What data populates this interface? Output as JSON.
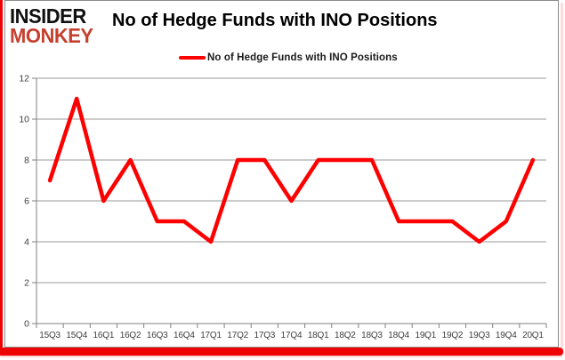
{
  "header": {
    "logo_line1": "INSIDER",
    "logo_line2": "MONKEY",
    "title": "No of Hedge Funds with INO Positions"
  },
  "legend": {
    "label": "No of Hedge Funds with INO Positions"
  },
  "colors": {
    "series_red": "#fe0000",
    "logo_black": "#111111",
    "logo_red": "#c5402f",
    "accent_red": "#ee0404",
    "gridline_gray": "#9a9a9a",
    "axis_gray": "#808080",
    "axis_label_color": "#3d3d3d",
    "background": "#ffffff"
  },
  "chart_data": {
    "type": "line",
    "title": "No of Hedge Funds with INO Positions",
    "categories": [
      "15Q3",
      "15Q4",
      "16Q1",
      "16Q2",
      "16Q3",
      "16Q4",
      "17Q1",
      "17Q2",
      "17Q3",
      "17Q4",
      "18Q1",
      "18Q2",
      "18Q3",
      "18Q4",
      "19Q1",
      "19Q2",
      "19Q3",
      "19Q4",
      "20Q1"
    ],
    "series": [
      {
        "name": "No of Hedge Funds with INO Positions",
        "values": [
          7,
          11,
          6,
          8,
          5,
          5,
          4,
          8,
          8,
          6,
          8,
          8,
          8,
          5,
          5,
          5,
          4,
          5,
          8
        ]
      }
    ],
    "xlabel": "",
    "ylabel": "",
    "ylim": [
      0,
      12
    ],
    "ytick_step": 2,
    "grid": true,
    "legend_position": "top-center"
  }
}
